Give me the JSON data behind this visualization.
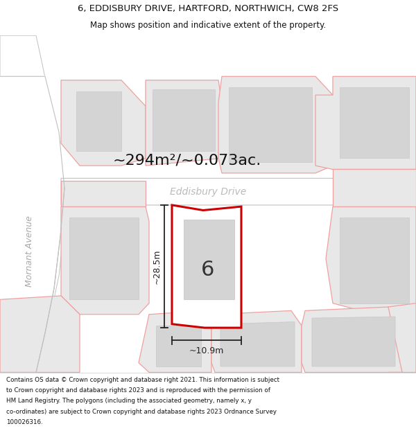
{
  "title_line1": "6, EDDISBURY DRIVE, HARTFORD, NORTHWICH, CW8 2FS",
  "title_line2": "Map shows position and indicative extent of the property.",
  "footer_lines": [
    "Contains OS data © Crown copyright and database right 2021. This information is subject",
    "to Crown copyright and database rights 2023 and is reproduced with the permission of",
    "HM Land Registry. The polygons (including the associated geometry, namely x, y",
    "co-ordinates) are subject to Crown copyright and database rights 2023 Ordnance Survey",
    "100026316."
  ],
  "area_label": "~294m²/~0.073ac.",
  "street_label": "Eddisbury Drive",
  "street_label_vertical": "Mornant Avenue",
  "dim_width": "~10.9m",
  "dim_height": "~28.5m",
  "house_number": "6",
  "map_bg": "#ffffff",
  "parcel_fill": "#e8e8e8",
  "parcel_edge": "#f0a0a0",
  "building_fill": "#d4d4d4",
  "building_edge": "#c8c8c8",
  "road_edge": "#c0c0c0",
  "plot_fill": "#ffffff",
  "plot_outline": "#cc0000",
  "street_color": "#bbbbbb",
  "mornant_color": "#aaaaaa",
  "dim_color": "#222222",
  "area_color": "#111111",
  "title_fontsize": 9.5,
  "subtitle_fontsize": 8.5,
  "footer_fontsize": 6.3,
  "area_fontsize": 16,
  "street_fontsize": 10,
  "mornant_fontsize": 9,
  "dim_fontsize": 9,
  "house_fontsize": 22
}
